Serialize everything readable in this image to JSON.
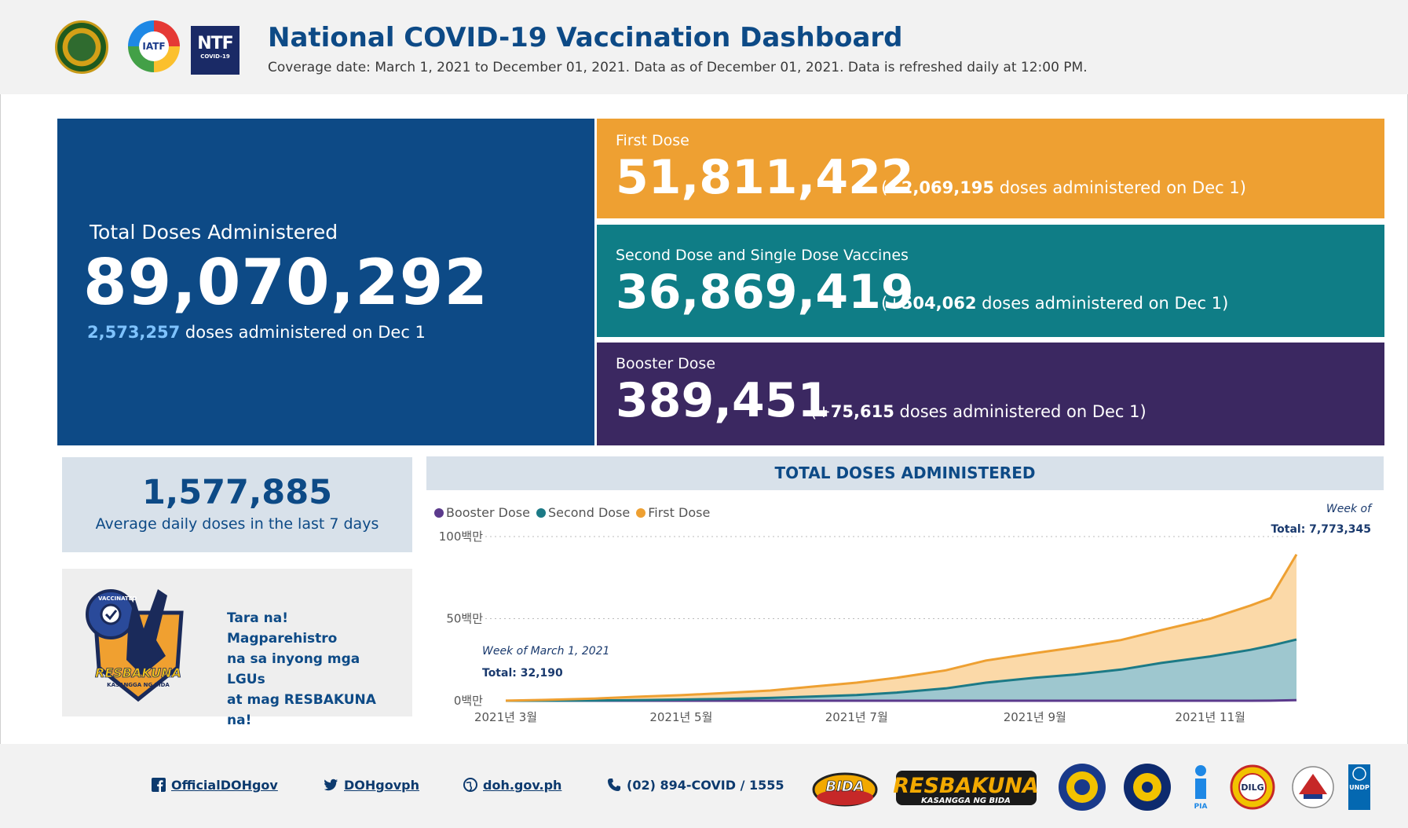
{
  "header": {
    "logos": [
      "doh-seal-icon",
      "iatf-logo-icon",
      "ntf-logo-icon"
    ],
    "ntf_text": "NTF",
    "ntf_sub": "COVID-19",
    "iatf_text": "IATF",
    "title": "National COVID-19 Vaccination Dashboard",
    "subtitle": "Coverage date: March 1, 2021 to December 01, 2021. Data as of December 01, 2021. Data is refreshed daily at 12:00 PM."
  },
  "total": {
    "label": "Total Doses Administered",
    "value": "89,070,292",
    "daily": "2,573,257",
    "daily_suffix": " doses administered on Dec 1"
  },
  "first_dose": {
    "label": "First Dose",
    "value": "51,811,422",
    "inc_prefix": "(+",
    "inc": "2,069,195",
    "inc_suffix": " doses administered on Dec 1)"
  },
  "second_dose": {
    "label": "Second Dose and Single Dose Vaccines",
    "value": "36,869,419",
    "inc_prefix": "(+",
    "inc": "504,062",
    "inc_suffix": " doses administered on Dec 1)"
  },
  "booster_dose": {
    "label": "Booster Dose",
    "value": "389,451",
    "inc_prefix": "(+",
    "inc": "75,615",
    "inc_suffix": " doses administered on Dec 1)"
  },
  "average": {
    "value": "1,577,885",
    "label": "Average daily doses in the last 7 days"
  },
  "promo": {
    "text": "Tara na! Magparehistro\nna sa inyong mga LGUs\nat mag RESBAKUNA\nna!",
    "badge_top": "VACCINATED",
    "badge_logo": "RESBAKUNA",
    "badge_sub": "KASANGGA NG BIDA"
  },
  "chart_header": "TOTAL DOSES ADMINISTERED",
  "chart_data": {
    "type": "area",
    "title": "TOTAL DOSES ADMINISTERED",
    "stacked": true,
    "x_tick_labels": [
      "2021년 3월",
      "2021년 5월",
      "2021년 7월",
      "2021년 9월",
      "2021년 11월"
    ],
    "y_tick_labels": [
      "0백만",
      "50백만",
      "100백만"
    ],
    "ylim": [
      0,
      100000000
    ],
    "legend": "top-left",
    "x": [
      "2021-03-01",
      "2021-03-15",
      "2021-04-01",
      "2021-04-15",
      "2021-05-01",
      "2021-05-15",
      "2021-06-01",
      "2021-06-15",
      "2021-07-01",
      "2021-07-15",
      "2021-08-01",
      "2021-08-15",
      "2021-09-01",
      "2021-09-15",
      "2021-10-01",
      "2021-10-15",
      "2021-11-01",
      "2021-11-15",
      "2021-11-22",
      "2021-12-01"
    ],
    "series": [
      {
        "name": "Booster Dose",
        "color": "#5b3a8c",
        "values": [
          0,
          0,
          0,
          0,
          0,
          0,
          0,
          0,
          0,
          0,
          0,
          0,
          0,
          0,
          0,
          0,
          0,
          0,
          50000,
          389451
        ]
      },
      {
        "name": "Second Dose",
        "color": "#1c7a86",
        "values": [
          0,
          20000,
          150000,
          400000,
          700000,
          1100000,
          1700000,
          2500000,
          3500000,
          5000000,
          7500000,
          11000000,
          14000000,
          16000000,
          19000000,
          23000000,
          27000000,
          31000000,
          33500000,
          36869419
        ]
      },
      {
        "name": "First Dose",
        "color": "#eea032",
        "values": [
          32190,
          500000,
          1200000,
          2000000,
          2700000,
          3500000,
          4500000,
          6000000,
          7500000,
          9000000,
          11000000,
          13500000,
          15000000,
          16500000,
          18000000,
          20000000,
          23000000,
          27000000,
          29000000,
          51811422
        ]
      }
    ],
    "annotations": [
      {
        "title": "Week of March 1, 2021",
        "text": "Total: 32,190"
      },
      {
        "title": "Week of",
        "text": "Total: 7,773,345"
      }
    ]
  },
  "footer": {
    "facebook": "OfficialDOHgov",
    "twitter": "DOHgovph",
    "website": "doh.gov.ph",
    "phone": "(02) 894-COVID / 1555",
    "partners": [
      "bida-logo-icon",
      "resbakuna-logo-icon",
      "pcoo-seal-icon",
      "ops-seal-icon",
      "pia-logo-icon",
      "dilg-seal-icon",
      "dict-seal-icon",
      "undp-logo-icon"
    ],
    "bida_text": "BIDA",
    "resbakuna_text": "RESBAKUNA",
    "resbakuna_sub": "KASANGGA NG BIDA",
    "pia_text": "PIA",
    "dilg_text": "DILG",
    "undp_text": "UNDP"
  }
}
